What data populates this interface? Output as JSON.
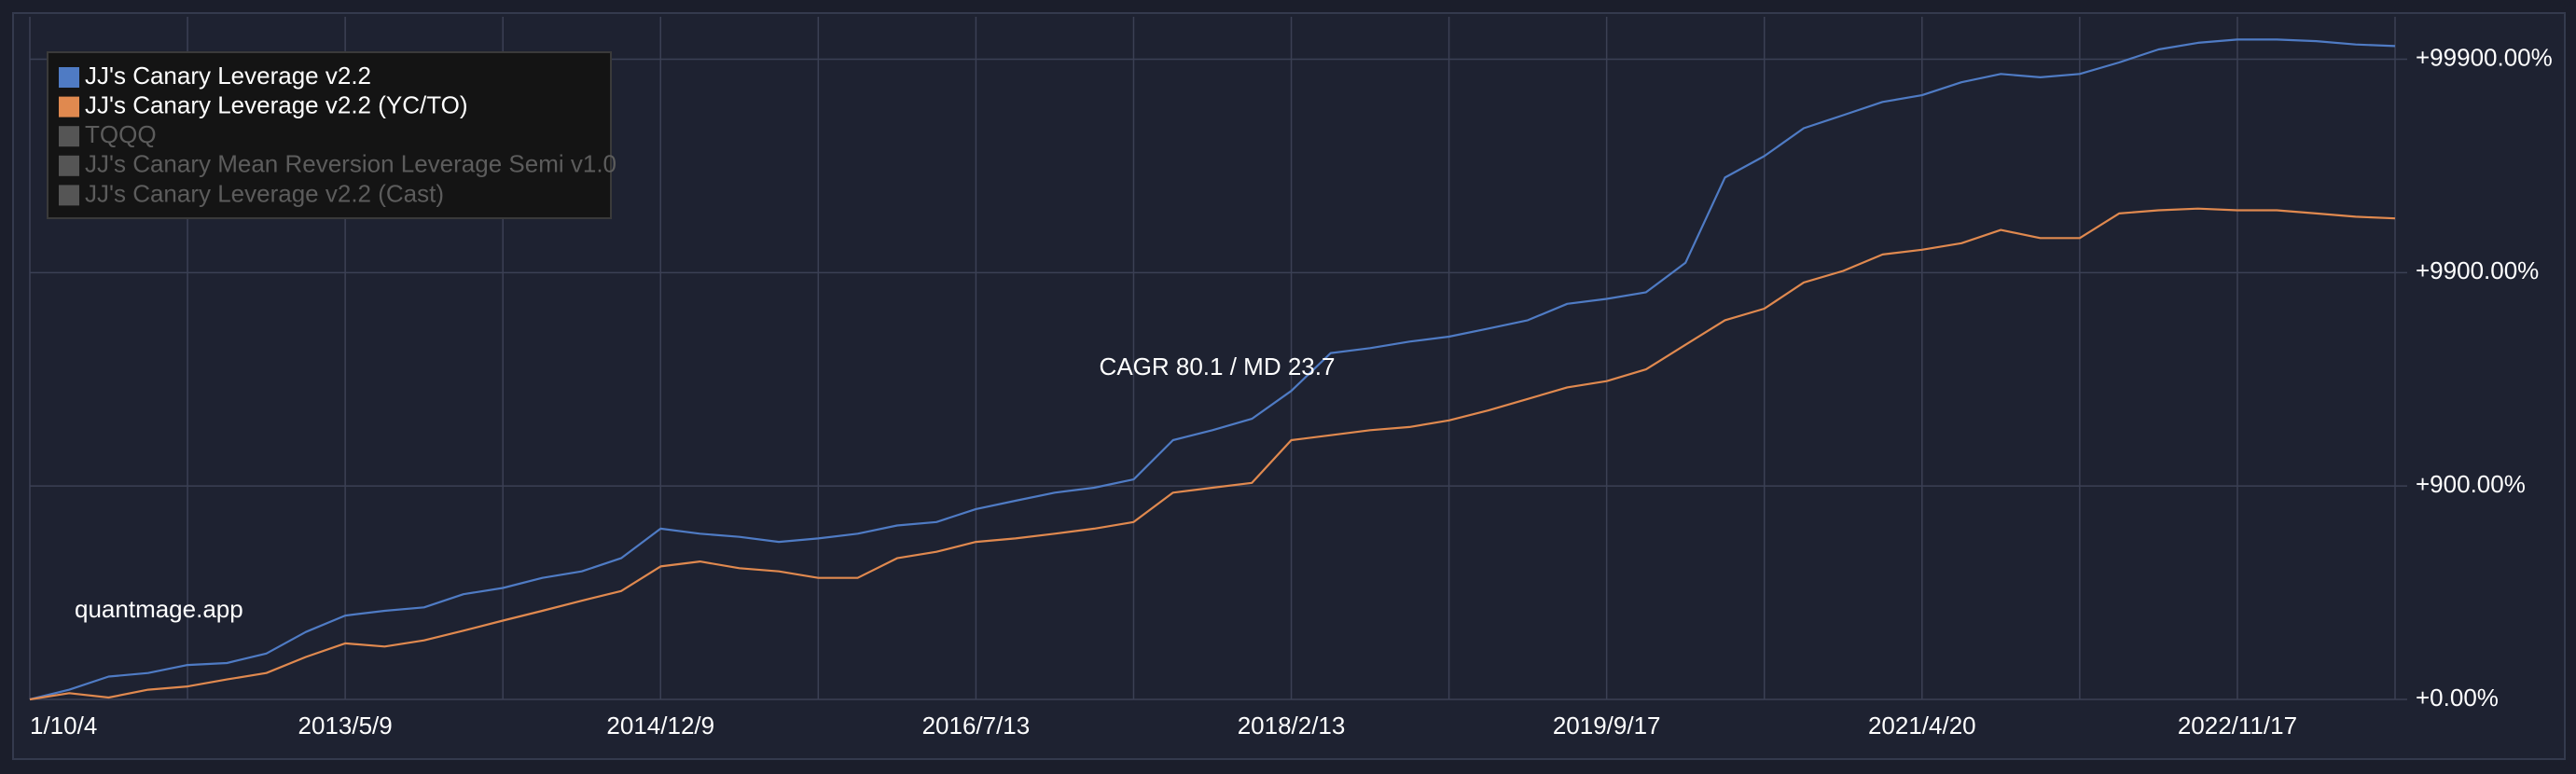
{
  "chart_data": {
    "type": "line",
    "log_scale": true,
    "grid": true,
    "xgrid_every": 4,
    "legend": "top-left",
    "annotations": [
      "CAGR 80.1 / MD 23.7",
      "quantmage.app"
    ],
    "categories": [
      "1/10/4",
      null,
      null,
      null,
      null,
      null,
      null,
      null,
      "2013/5/9",
      null,
      null,
      null,
      null,
      null,
      null,
      null,
      "2014/12/9",
      null,
      null,
      null,
      null,
      null,
      null,
      null,
      "2016/7/13",
      null,
      null,
      null,
      null,
      null,
      null,
      null,
      "2018/2/13",
      null,
      null,
      null,
      null,
      null,
      null,
      null,
      "2019/9/17",
      null,
      null,
      null,
      null,
      null,
      null,
      null,
      "2021/4/20",
      null,
      null,
      null,
      null,
      null,
      null,
      null,
      "2022/11/17",
      null,
      null,
      null,
      null
    ],
    "ylim": [
      0,
      158000
    ],
    "yticks": [
      {
        "value": 0,
        "label": "+0.00%"
      },
      {
        "value": 900,
        "label": "+900.00%"
      },
      {
        "value": 9900,
        "label": "+9900.00%"
      },
      {
        "value": 99900,
        "label": "+99900.00%"
      }
    ],
    "series": [
      {
        "name": "JJ's Canary Leverage v2.2",
        "color": "#4f7bc4",
        "visible": true,
        "values": [
          0,
          11,
          28,
          33,
          45,
          48,
          64,
          107,
          147,
          160,
          170,
          211,
          233,
          271,
          298,
          359,
          531,
          498,
          478,
          447,
          468,
          498,
          553,
          578,
          680,
          753,
          831,
          882,
          974,
          1540,
          1727,
          1965,
          2690,
          4100,
          4330,
          4650,
          4910,
          5370,
          5880,
          7040,
          7430,
          7990,
          11020,
          27800,
          35050,
          47400,
          54600,
          63000,
          67700,
          77900,
          85200,
          82200,
          85200,
          96500,
          111100,
          119300,
          123600,
          123600,
          121500,
          117200,
          115200
        ]
      },
      {
        "name": "JJ's Canary Leverage v2.2 (YC/TO)",
        "color": "#e0894f",
        "visible": true,
        "values": [
          0,
          7,
          2,
          11,
          15,
          24,
          33,
          58,
          83,
          77,
          89,
          110,
          134,
          160,
          190,
          222,
          320,
          343,
          312,
          298,
          271,
          271,
          359,
          392,
          447,
          468,
          498,
          531,
          578,
          831,
          882,
          935,
          1540,
          1630,
          1727,
          1790,
          1930,
          2160,
          2460,
          2800,
          3000,
          3420,
          4490,
          5880,
          6680,
          8890,
          10090,
          12060,
          12700,
          13640,
          15750,
          14420,
          14420,
          18830,
          19500,
          19850,
          19500,
          19500,
          18830,
          18180,
          17850
        ]
      },
      {
        "name": "TQQQ",
        "color": "#555555",
        "visible": false
      },
      {
        "name": "JJ's Canary Mean Reversion Leverage Semi v1.0",
        "color": "#555555",
        "visible": false
      },
      {
        "name": "JJ's Canary Leverage v2.2 (Cast)",
        "color": "#555555",
        "visible": false
      }
    ]
  }
}
